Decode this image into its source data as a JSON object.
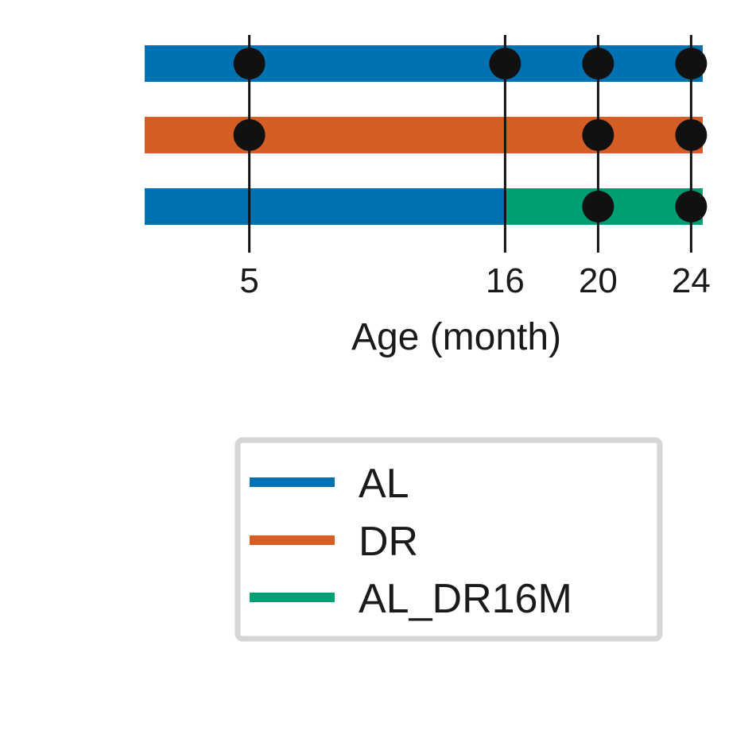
{
  "chart_data": {
    "type": "timeline",
    "xlabel": "Age (month)",
    "x_ticks": [
      5,
      16,
      20,
      24
    ],
    "xlim": [
      0.5,
      24.5
    ],
    "grid": false,
    "legend_placement": "below",
    "series": [
      {
        "name": "AL",
        "color": "#0072b2",
        "segments": [
          {
            "start": 0.5,
            "end": 24.5,
            "color": "#0072b2"
          }
        ],
        "timepoints": [
          5,
          16,
          20,
          24
        ]
      },
      {
        "name": "DR",
        "color": "#d55e27",
        "segments": [
          {
            "start": 0.5,
            "end": 24.5,
            "color": "#d55e27"
          }
        ],
        "timepoints": [
          5,
          20,
          24
        ]
      },
      {
        "name": "AL_DR16M",
        "color": "#009e73",
        "segments": [
          {
            "start": 0.5,
            "end": 16,
            "color": "#0072b2"
          },
          {
            "start": 16,
            "end": 24.5,
            "color": "#009e73"
          }
        ],
        "timepoints": [
          20,
          24
        ]
      }
    ],
    "legend": [
      {
        "label": "AL",
        "color": "#0072b2"
      },
      {
        "label": "DR",
        "color": "#d55e27"
      },
      {
        "label": "AL_DR16M",
        "color": "#009e73"
      }
    ]
  }
}
